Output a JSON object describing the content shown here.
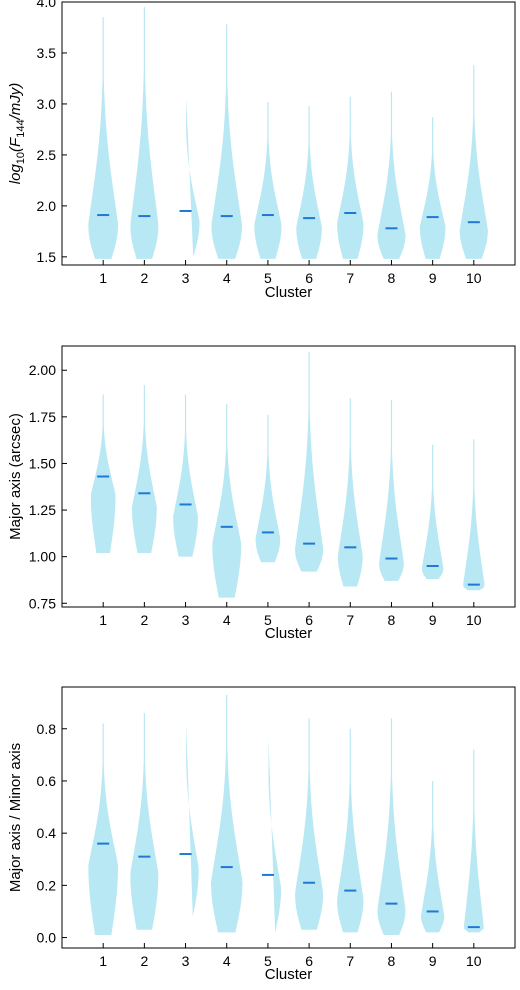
{
  "chart_data": [
    {
      "type": "violin",
      "xlabel": "Cluster",
      "ylabel_parts": {
        "pre": "log",
        "sub": "10",
        "mid": "(F",
        "sub2": "144",
        "post": "/mJy)"
      },
      "categories": [
        "1",
        "2",
        "3",
        "4",
        "5",
        "6",
        "7",
        "8",
        "9",
        "10"
      ],
      "ylim": [
        1.42,
        4.0
      ],
      "yticks": [
        1.5,
        2.0,
        2.5,
        3.0,
        3.5,
        4.0
      ],
      "ytick_labels": [
        "1.5",
        "2.0",
        "2.5",
        "3.0",
        "3.5",
        "4.0"
      ],
      "medians": [
        1.91,
        1.9,
        1.95,
        1.9,
        1.91,
        1.88,
        1.93,
        1.78,
        1.89,
        1.84
      ],
      "mins": [
        1.48,
        1.48,
        1.5,
        1.48,
        1.48,
        1.48,
        1.48,
        1.48,
        1.48,
        1.48
      ],
      "maxs": [
        3.85,
        3.95,
        3.1,
        3.78,
        3.02,
        2.98,
        3.07,
        3.12,
        2.87,
        3.38
      ],
      "max_half_widths": [
        0.36,
        0.34,
        0.34,
        0.37,
        0.33,
        0.31,
        0.32,
        0.34,
        0.31,
        0.34
      ]
    },
    {
      "type": "violin",
      "xlabel": "Cluster",
      "ylabel": "Major axis (arcsec)",
      "categories": [
        "1",
        "2",
        "3",
        "4",
        "5",
        "6",
        "7",
        "8",
        "9",
        "10"
      ],
      "ylim": [
        0.73,
        2.13
      ],
      "yticks": [
        0.75,
        1.0,
        1.25,
        1.5,
        1.75,
        2.0
      ],
      "ytick_labels": [
        "0.75",
        "1.00",
        "1.25",
        "1.50",
        "1.75",
        "2.00"
      ],
      "medians": [
        1.43,
        1.34,
        1.28,
        1.16,
        1.13,
        1.07,
        1.05,
        0.99,
        0.95,
        0.85
      ],
      "mins": [
        1.02,
        1.02,
        1.0,
        0.78,
        0.97,
        0.92,
        0.84,
        0.87,
        0.88,
        0.82
      ],
      "maxs": [
        1.87,
        1.92,
        1.87,
        1.82,
        1.76,
        2.1,
        1.85,
        1.84,
        1.6,
        1.63
      ],
      "max_half_widths": [
        0.3,
        0.3,
        0.3,
        0.35,
        0.3,
        0.34,
        0.3,
        0.3,
        0.26,
        0.26
      ]
    },
    {
      "type": "violin",
      "xlabel": "Cluster",
      "ylabel": "Major axis / Minor axis",
      "categories": [
        "1",
        "2",
        "3",
        "4",
        "5",
        "6",
        "7",
        "8",
        "9",
        "10"
      ],
      "ylim": [
        -0.04,
        0.96
      ],
      "yticks": [
        0.0,
        0.2,
        0.4,
        0.6,
        0.8
      ],
      "ytick_labels": [
        "0.0",
        "0.2",
        "0.4",
        "0.6",
        "0.8"
      ],
      "medians": [
        0.36,
        0.31,
        0.32,
        0.27,
        0.24,
        0.21,
        0.18,
        0.13,
        0.1,
        0.04
      ],
      "mins": [
        0.01,
        0.03,
        0.08,
        0.02,
        0.02,
        0.03,
        0.02,
        0.01,
        0.02,
        0.02
      ],
      "maxs": [
        0.82,
        0.86,
        0.84,
        0.93,
        0.78,
        0.84,
        0.8,
        0.84,
        0.6,
        0.72
      ],
      "max_half_widths": [
        0.36,
        0.34,
        0.32,
        0.38,
        0.32,
        0.34,
        0.32,
        0.34,
        0.28,
        0.24
      ]
    }
  ],
  "colors": {
    "violin_fill": "#b8e8f3",
    "median_line": "#1f78d6",
    "axis": "#000000"
  }
}
